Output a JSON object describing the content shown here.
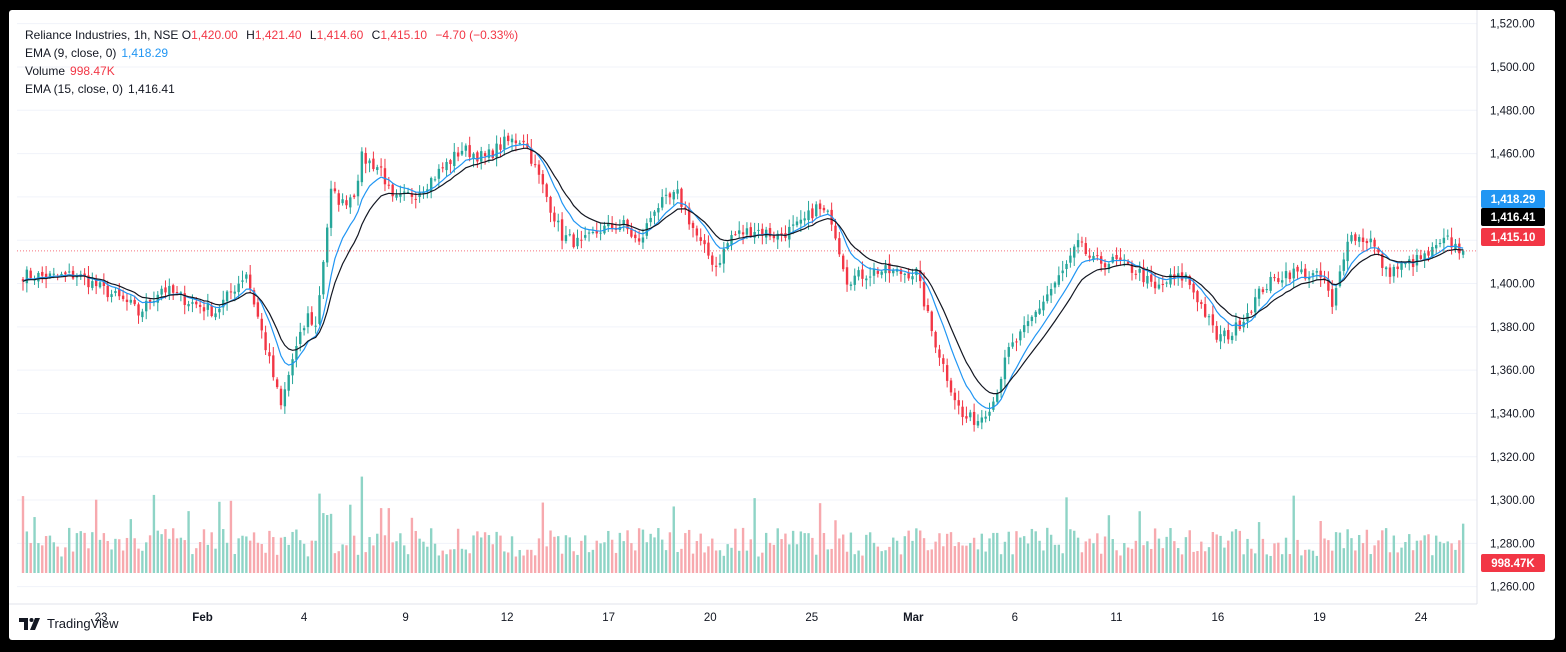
{
  "legend": {
    "symbol": "Reliance Industries, 1h, NSE",
    "o_label": "O",
    "o_value": "1,420.00",
    "h_label": "H",
    "h_value": "1,421.40",
    "l_label": "L",
    "l_value": "1,414.60",
    "c_label": "C",
    "c_value": "1,415.10",
    "change": "−4.70 (−0.33%)",
    "ema9_label": "EMA (9, close, 0)",
    "ema9_value": "1,418.29",
    "volume_label": "Volume",
    "volume_value": "998.47K",
    "ema15_label": "EMA (15, close, 0)",
    "ema15_value": "1,416.41"
  },
  "brand": {
    "name": "TradingView",
    "icon": "tradingview-logo-icon"
  },
  "colors": {
    "up": "#26a69a",
    "down": "#f23645",
    "ema9": "#2196f3",
    "ema15": "#131722",
    "up_vol": "#8ed4c6",
    "down_vol": "#f7a9ae"
  },
  "chart_data": {
    "type": "candlestick",
    "title": "Reliance Industries, 1h, NSE",
    "y_ticks": [
      "1,520.00",
      "1,500.00",
      "1,480.00",
      "1,460.00",
      "1,440.00",
      "1,420.00",
      "1,400.00",
      "1,380.00",
      "1,360.00",
      "1,340.00",
      "1,320.00",
      "1,300.00",
      "1,280.00",
      "1,260.00"
    ],
    "ylim": [
      1252,
      1524
    ],
    "x_ticks": [
      "23",
      "Feb",
      "4",
      "9",
      "12",
      "17",
      "20",
      "25",
      "Mar",
      "6",
      "11",
      "16",
      "19",
      "24"
    ],
    "price_tags": {
      "ema9": "1,418.29",
      "ema15": "1,416.41",
      "last": "1,415.10",
      "volume": "998.47K"
    },
    "last_price": 1415.1,
    "anchors": [
      [
        0,
        1404
      ],
      [
        8,
        1403
      ],
      [
        14,
        1404
      ],
      [
        22,
        1396
      ],
      [
        28,
        1390
      ],
      [
        30,
        1386
      ],
      [
        36,
        1398
      ],
      [
        44,
        1391
      ],
      [
        50,
        1387
      ],
      [
        58,
        1405
      ],
      [
        64,
        1364
      ],
      [
        67,
        1343
      ],
      [
        70,
        1365
      ],
      [
        74,
        1385
      ],
      [
        76,
        1380
      ],
      [
        80,
        1442
      ],
      [
        83,
        1437
      ],
      [
        86,
        1442
      ],
      [
        88,
        1458
      ],
      [
        93,
        1453
      ],
      [
        96,
        1438
      ],
      [
        102,
        1442
      ],
      [
        106,
        1448
      ],
      [
        114,
        1462
      ],
      [
        120,
        1458
      ],
      [
        125,
        1465
      ],
      [
        130,
        1467
      ],
      [
        136,
        1440
      ],
      [
        140,
        1422
      ],
      [
        145,
        1418
      ],
      [
        150,
        1425
      ],
      [
        156,
        1427
      ],
      [
        160,
        1418
      ],
      [
        164,
        1435
      ],
      [
        170,
        1441
      ],
      [
        176,
        1418
      ],
      [
        180,
        1408
      ],
      [
        184,
        1422
      ],
      [
        190,
        1425
      ],
      [
        196,
        1422
      ],
      [
        202,
        1427
      ],
      [
        206,
        1435
      ],
      [
        210,
        1430
      ],
      [
        214,
        1402
      ],
      [
        218,
        1404
      ],
      [
        222,
        1406
      ],
      [
        226,
        1405
      ],
      [
        232,
        1405
      ],
      [
        236,
        1378
      ],
      [
        240,
        1357
      ],
      [
        244,
        1338
      ],
      [
        248,
        1337
      ],
      [
        252,
        1346
      ],
      [
        256,
        1369
      ],
      [
        260,
        1378
      ],
      [
        266,
        1395
      ],
      [
        270,
        1405
      ],
      [
        274,
        1418
      ],
      [
        278,
        1410
      ],
      [
        284,
        1410
      ],
      [
        290,
        1405
      ],
      [
        294,
        1397
      ],
      [
        298,
        1402
      ],
      [
        302,
        1403
      ],
      [
        306,
        1390
      ],
      [
        310,
        1375
      ],
      [
        314,
        1377
      ],
      [
        318,
        1387
      ],
      [
        322,
        1398
      ],
      [
        328,
        1405
      ],
      [
        332,
        1405
      ],
      [
        338,
        1402
      ],
      [
        340,
        1388
      ],
      [
        344,
        1422
      ],
      [
        350,
        1420
      ],
      [
        354,
        1405
      ],
      [
        358,
        1408
      ],
      [
        364,
        1412
      ],
      [
        370,
        1420
      ],
      [
        372,
        1417
      ],
      [
        374,
        1415.1
      ]
    ],
    "volume_ylim": [
      0,
      1700000
    ],
    "volume_last": 998470
  }
}
